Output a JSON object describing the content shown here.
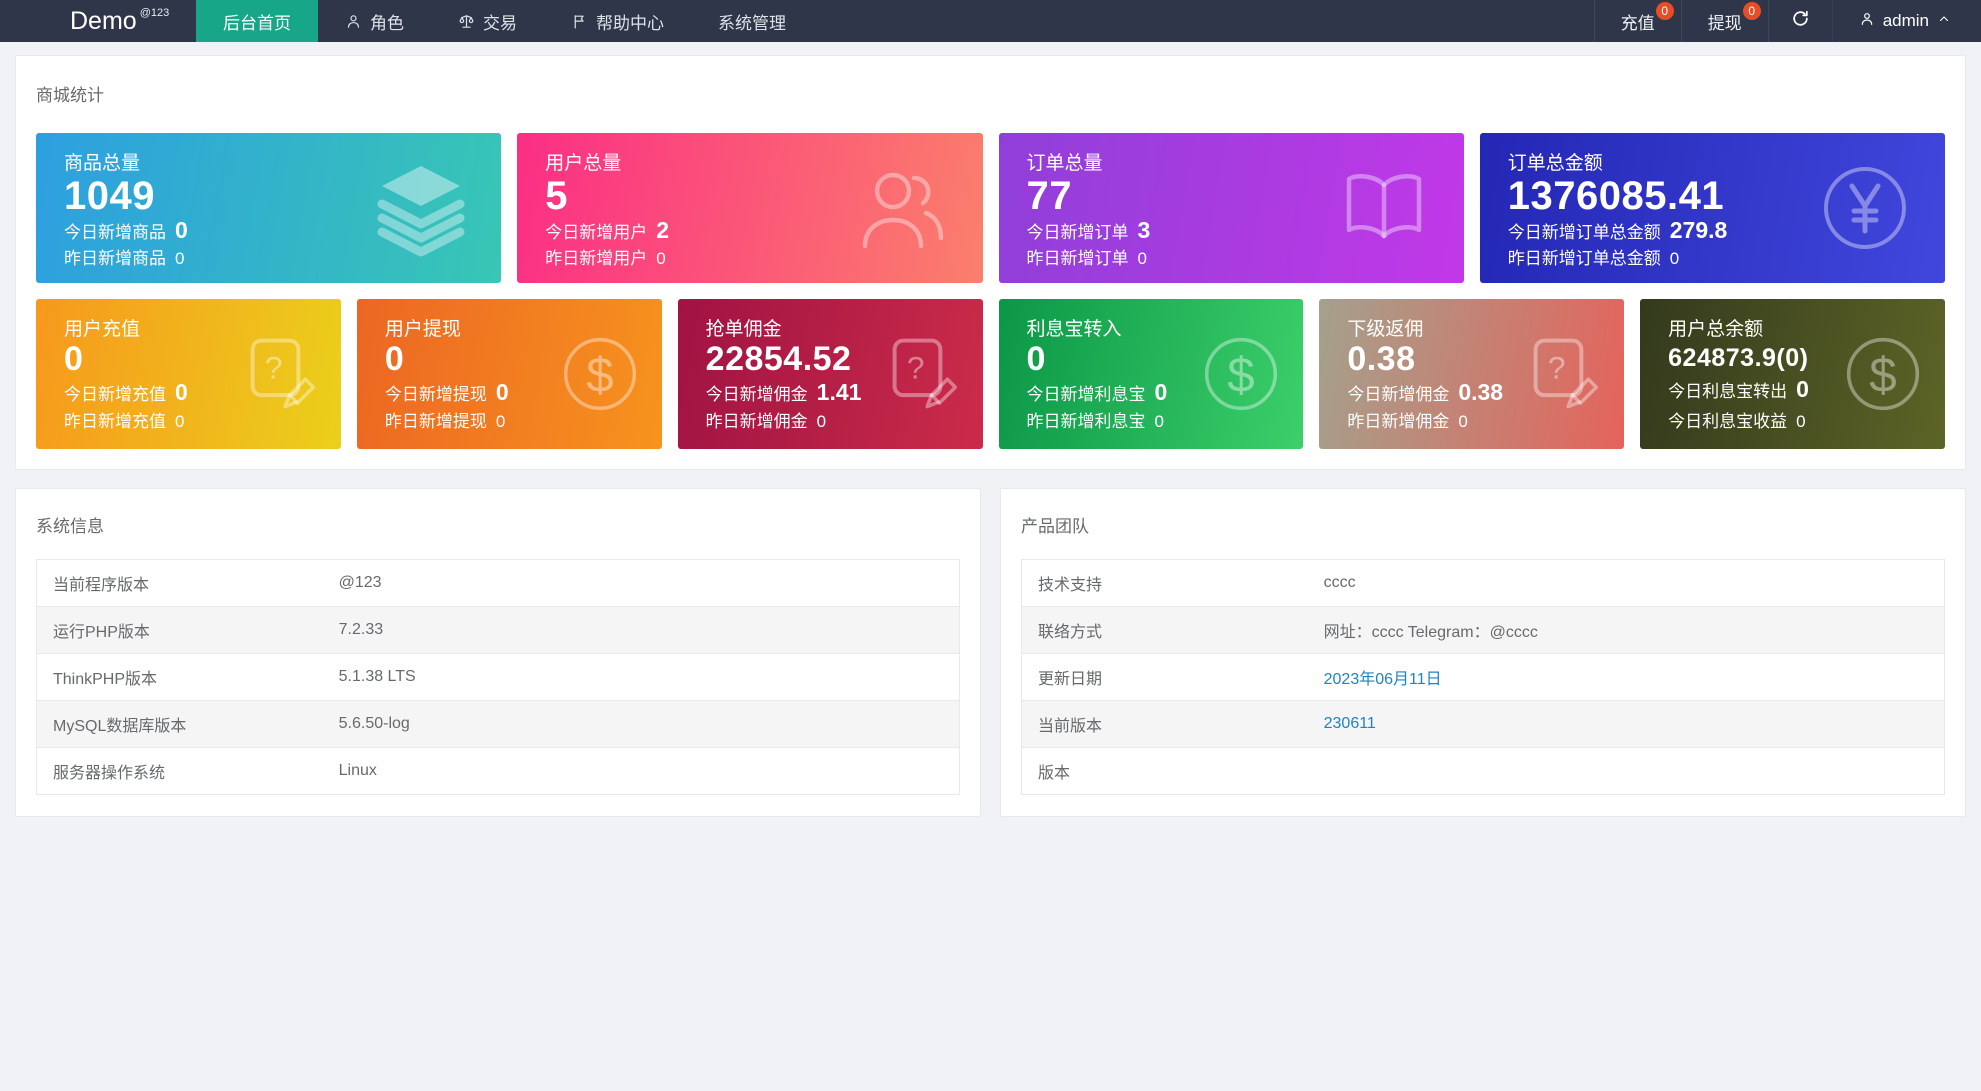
{
  "colors": {
    "navbar_bg": "#303649",
    "active_tab": "#18a689",
    "badge": "#e74e27",
    "link": "#1c84c6",
    "page_bg": "#f0f2f5"
  },
  "navbar": {
    "brand": "Demo",
    "brand_badge": "@123",
    "items": [
      {
        "id": "home",
        "label": "后台首页",
        "active": true
      },
      {
        "id": "role",
        "label": "角色",
        "icon": "person-icon"
      },
      {
        "id": "trade",
        "label": "交易",
        "icon": "scales-icon"
      },
      {
        "id": "help",
        "label": "帮助中心",
        "icon": "flag-icon"
      },
      {
        "id": "system",
        "label": "系统管理"
      }
    ],
    "actions": [
      {
        "id": "recharge",
        "label": "充值",
        "badge": "0"
      },
      {
        "id": "withdraw",
        "label": "提现",
        "badge": "0"
      }
    ],
    "user": {
      "name": "admin"
    }
  },
  "stats": {
    "title": "商城统计",
    "row1": [
      {
        "title": "商品总量",
        "value": "1049",
        "lines": [
          {
            "label": "今日新增商品",
            "value": "0",
            "bold": true
          },
          {
            "label": "昨日新增商品",
            "value": "0"
          }
        ],
        "icon": "layers-icon",
        "gradient": [
          "#2d9fe0",
          "#38c6b5"
        ]
      },
      {
        "title": "用户总量",
        "value": "5",
        "lines": [
          {
            "label": "今日新增用户",
            "value": "2",
            "bold": true
          },
          {
            "label": "昨日新增用户",
            "value": "0"
          }
        ],
        "icon": "users-icon",
        "gradient": [
          "#fb2e85",
          "#fb7f6c"
        ]
      },
      {
        "title": "订单总量",
        "value": "77",
        "lines": [
          {
            "label": "今日新增订单",
            "value": "3",
            "bold": true
          },
          {
            "label": "昨日新增订单",
            "value": "0"
          }
        ],
        "icon": "book-icon",
        "gradient": [
          "#8f3fd9",
          "#c238e8"
        ]
      },
      {
        "title": "订单总金额",
        "value": "1376085.41",
        "lines": [
          {
            "label": "今日新增订单总金额",
            "value": "279.8",
            "bold": true
          },
          {
            "label": "昨日新增订单总金额",
            "value": "0"
          }
        ],
        "icon": "yen-circle-icon",
        "gradient": [
          "#2427b4",
          "#4147dd"
        ]
      }
    ],
    "row2": [
      {
        "title": "用户充值",
        "value": "0",
        "lines": [
          {
            "label": "今日新增充值",
            "value": "0",
            "bold": true
          },
          {
            "label": "昨日新增充值",
            "value": "0"
          }
        ],
        "icon": "doc-question-icon",
        "gradient": [
          "#f7981d",
          "#ebd01b"
        ]
      },
      {
        "title": "用户提现",
        "value": "0",
        "lines": [
          {
            "label": "今日新增提现",
            "value": "0",
            "bold": true
          },
          {
            "label": "昨日新增提现",
            "value": "0"
          }
        ],
        "icon": "dollar-circle-icon",
        "gradient": [
          "#ec6623",
          "#f7931e"
        ]
      },
      {
        "title": "抢单佣金",
        "value": "22854.52",
        "lines": [
          {
            "label": "今日新增佣金",
            "value": "1.41",
            "bold": true
          },
          {
            "label": "昨日新增佣金",
            "value": "0"
          }
        ],
        "icon": "doc-question-icon",
        "gradient": [
          "#a01343",
          "#cb2b49"
        ]
      },
      {
        "title": "利息宝转入",
        "value": "0",
        "lines": [
          {
            "label": "今日新增利息宝",
            "value": "0",
            "bold": true
          },
          {
            "label": "昨日新增利息宝",
            "value": "0"
          }
        ],
        "icon": "dollar-circle-icon",
        "gradient": [
          "#0c9747",
          "#3ccf6a"
        ]
      },
      {
        "title": "下级返佣",
        "value": "0.38",
        "lines": [
          {
            "label": "今日新增佣金",
            "value": "0.38",
            "bold": true
          },
          {
            "label": "昨日新增佣金",
            "value": "0"
          }
        ],
        "icon": "doc-question-icon",
        "gradient": [
          "#a4a18c",
          "#e5635c"
        ]
      },
      {
        "title": "用户总余额",
        "value": "624873.9(0)",
        "small_value": true,
        "lines": [
          {
            "label": "今日利息宝转出",
            "value": "0",
            "bold": true
          },
          {
            "label": "今日利息宝收益",
            "value": "0"
          }
        ],
        "icon": "dollar-circle-icon",
        "gradient": [
          "#33391d",
          "#5d6426"
        ]
      }
    ]
  },
  "system_info": {
    "title": "系统信息",
    "rows": [
      {
        "label": "当前程序版本",
        "value": "@123"
      },
      {
        "label": "运行PHP版本",
        "value": "7.2.33"
      },
      {
        "label": "ThinkPHP版本",
        "value": "5.1.38 LTS"
      },
      {
        "label": "MySQL数据库版本",
        "value": "5.6.50-log"
      },
      {
        "label": "服务器操作系统",
        "value": "Linux"
      }
    ]
  },
  "product_team": {
    "title": "产品团队",
    "rows": [
      {
        "label": "技术支持",
        "value": "cccc"
      },
      {
        "label": "联络方式",
        "value": "网址：cccc Telegram：@cccc"
      },
      {
        "label": "更新日期",
        "value": "2023年06月11日",
        "link": true
      },
      {
        "label": "当前版本",
        "value": "230611",
        "link": true
      },
      {
        "label": "版本",
        "value": ""
      }
    ]
  }
}
